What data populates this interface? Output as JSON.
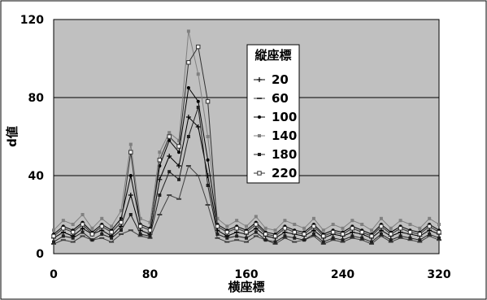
{
  "chart_data": {
    "type": "line",
    "title": "",
    "xlabel": "横座標",
    "ylabel": "d値",
    "xlim": [
      0,
      320
    ],
    "ylim": [
      0,
      120
    ],
    "x_ticks": [
      "0",
      "80",
      "160",
      "240",
      "320"
    ],
    "y_ticks": [
      "0",
      "40",
      "80",
      "120"
    ],
    "grid": "horizontal",
    "background": "#c0c0c0",
    "legend": {
      "title": "縦座標",
      "position": "top-right"
    },
    "series": [
      {
        "name": "20",
        "color": "#000000",
        "marker": "plus",
        "x": [
          0,
          8,
          16,
          24,
          32,
          40,
          48,
          56,
          64,
          72,
          80,
          88,
          96,
          104,
          112,
          120,
          128,
          136,
          144,
          152,
          160,
          168,
          176,
          184,
          192,
          200,
          208,
          216,
          224,
          232,
          240,
          248,
          256,
          264,
          272,
          280,
          288,
          296,
          304,
          312,
          320
        ],
        "values": [
          8,
          11,
          9,
          13,
          10,
          12,
          9,
          14,
          30,
          12,
          10,
          38,
          50,
          45,
          70,
          65,
          40,
          12,
          9,
          11,
          10,
          13,
          9,
          8,
          11,
          10,
          9,
          12,
          8,
          10,
          9,
          11,
          10,
          8,
          12,
          9,
          11,
          10,
          9,
          12,
          10
        ]
      },
      {
        "name": "60",
        "color": "#404040",
        "marker": "dash",
        "x": [
          0,
          8,
          16,
          24,
          32,
          40,
          48,
          56,
          64,
          72,
          80,
          88,
          96,
          104,
          112,
          120,
          128,
          136,
          144,
          152,
          160,
          168,
          176,
          184,
          192,
          200,
          208,
          216,
          224,
          232,
          240,
          248,
          256,
          264,
          272,
          280,
          288,
          296,
          304,
          312,
          320
        ],
        "values": [
          5,
          7,
          6,
          9,
          7,
          8,
          6,
          10,
          12,
          9,
          8,
          20,
          30,
          28,
          45,
          40,
          25,
          8,
          6,
          7,
          6,
          9,
          7,
          5,
          8,
          6,
          7,
          9,
          5,
          7,
          6,
          8,
          7,
          5,
          9,
          6,
          8,
          7,
          6,
          9,
          7
        ]
      },
      {
        "name": "100",
        "color": "#000000",
        "marker": "dot",
        "x": [
          0,
          8,
          16,
          24,
          32,
          40,
          48,
          56,
          64,
          72,
          80,
          88,
          96,
          104,
          112,
          120,
          128,
          136,
          144,
          152,
          160,
          168,
          176,
          184,
          192,
          200,
          208,
          216,
          224,
          232,
          240,
          248,
          256,
          264,
          272,
          280,
          288,
          296,
          304,
          312,
          320
        ],
        "values": [
          10,
          14,
          12,
          16,
          11,
          15,
          12,
          18,
          40,
          15,
          13,
          45,
          58,
          52,
          85,
          78,
          48,
          15,
          12,
          14,
          12,
          16,
          11,
          10,
          14,
          12,
          11,
          15,
          10,
          12,
          11,
          14,
          12,
          10,
          15,
          11,
          14,
          12,
          11,
          15,
          12
        ]
      },
      {
        "name": "140",
        "color": "#808080",
        "marker": "square",
        "x": [
          0,
          8,
          16,
          24,
          32,
          40,
          48,
          56,
          64,
          72,
          80,
          88,
          96,
          104,
          112,
          120,
          128,
          136,
          144,
          152,
          160,
          168,
          176,
          184,
          192,
          200,
          208,
          216,
          224,
          232,
          240,
          248,
          256,
          264,
          272,
          280,
          288,
          296,
          304,
          312,
          320
        ],
        "values": [
          12,
          17,
          15,
          20,
          13,
          18,
          14,
          22,
          56,
          18,
          16,
          52,
          62,
          58,
          114,
          92,
          60,
          18,
          14,
          17,
          14,
          19,
          13,
          12,
          17,
          15,
          13,
          18,
          12,
          15,
          13,
          17,
          15,
          12,
          18,
          13,
          17,
          15,
          13,
          18,
          15
        ]
      },
      {
        "name": "180",
        "color": "#202020",
        "marker": "square",
        "x": [
          0,
          8,
          16,
          24,
          32,
          40,
          48,
          56,
          64,
          72,
          80,
          88,
          96,
          104,
          112,
          120,
          128,
          136,
          144,
          152,
          160,
          168,
          176,
          184,
          192,
          200,
          208,
          216,
          224,
          232,
          240,
          248,
          256,
          264,
          272,
          280,
          288,
          296,
          304,
          312,
          320
        ],
        "values": [
          6,
          9,
          8,
          11,
          7,
          10,
          8,
          12,
          20,
          10,
          9,
          30,
          42,
          38,
          60,
          75,
          35,
          10,
          8,
          9,
          8,
          11,
          7,
          6,
          9,
          8,
          7,
          10,
          6,
          8,
          7,
          9,
          8,
          6,
          10,
          7,
          9,
          8,
          7,
          10,
          8
        ]
      },
      {
        "name": "220",
        "color": "#303030",
        "marker": "open-square",
        "x": [
          0,
          8,
          16,
          24,
          32,
          40,
          48,
          56,
          64,
          72,
          80,
          88,
          96,
          104,
          112,
          120,
          128,
          136,
          144,
          152,
          160,
          168,
          176,
          184,
          192,
          200,
          208,
          216,
          224,
          232,
          240,
          248,
          256,
          264,
          272,
          280,
          288,
          296,
          304,
          312,
          320
        ],
        "values": [
          9,
          13,
          11,
          15,
          10,
          14,
          11,
          16,
          52,
          14,
          12,
          48,
          60,
          55,
          98,
          106,
          78,
          14,
          11,
          13,
          11,
          15,
          10,
          9,
          13,
          11,
          10,
          14,
          9,
          11,
          10,
          13,
          11,
          9,
          14,
          10,
          13,
          11,
          10,
          14,
          11
        ]
      }
    ]
  }
}
